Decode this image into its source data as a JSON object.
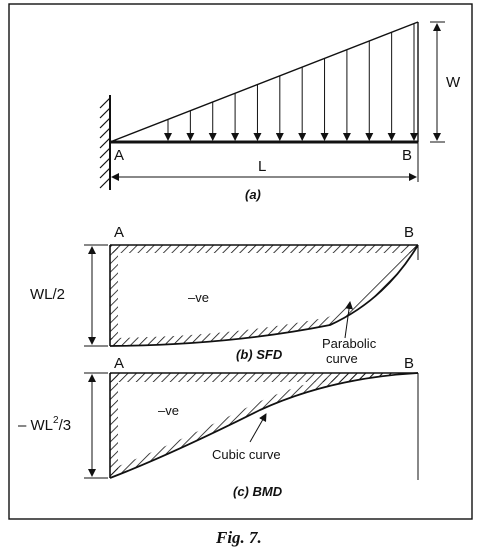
{
  "figure_caption": "Fig. 7.",
  "panel_a": {
    "caption": "(a)",
    "end_left": "A",
    "end_right": "B",
    "span_label": "L",
    "load_label": "W"
  },
  "panel_b": {
    "caption": "(b) SFD",
    "end_left": "A",
    "end_right": "B",
    "ordinate_label": "WL/2",
    "sign_label": "–ve",
    "curve_note": "Parabolic curve"
  },
  "panel_c": {
    "caption": "(c) BMD",
    "end_left": "A",
    "end_right": "B",
    "ordinate_label_main": "– WL",
    "ordinate_label_exp": "2",
    "ordinate_label_tail": "/3",
    "sign_label": "–ve",
    "curve_note": "Cubic curve"
  }
}
